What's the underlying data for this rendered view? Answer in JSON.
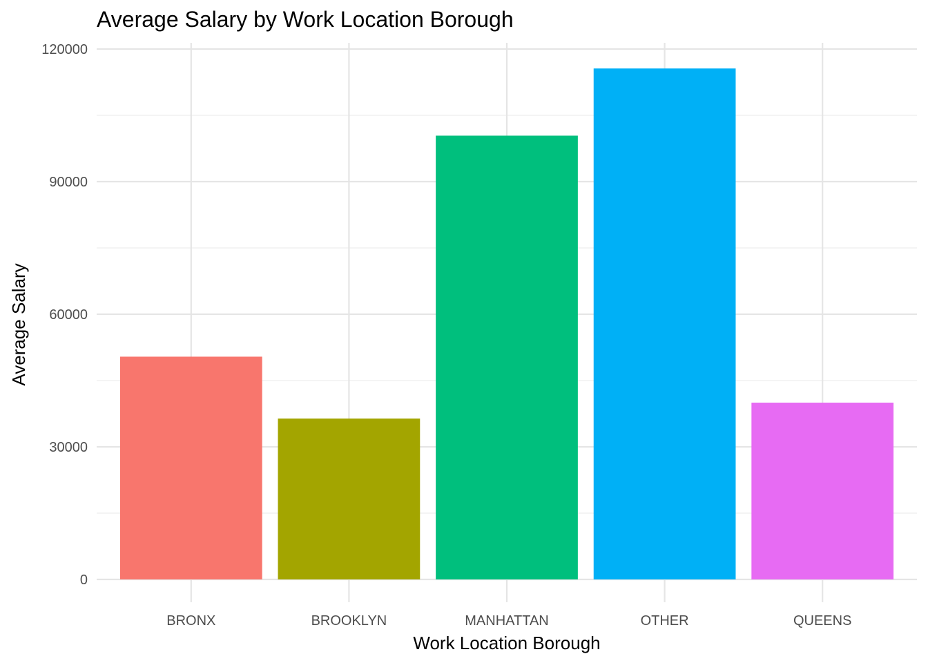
{
  "chart_data": {
    "type": "bar",
    "title": "Average Salary by Work Location Borough",
    "xlabel": "Work Location Borough",
    "ylabel": "Average Salary",
    "categories": [
      "BRONX",
      "BROOKLYN",
      "MANHATTAN",
      "OTHER",
      "QUEENS"
    ],
    "values": [
      50400,
      36400,
      100400,
      115600,
      40000
    ],
    "colors": [
      "#F8766D",
      "#A3A500",
      "#00BF7D",
      "#00B0F6",
      "#E76BF3"
    ],
    "yticks": [
      0,
      30000,
      60000,
      90000,
      120000
    ],
    "ylim": [
      0,
      120000
    ],
    "grid": true,
    "legend": "none"
  }
}
